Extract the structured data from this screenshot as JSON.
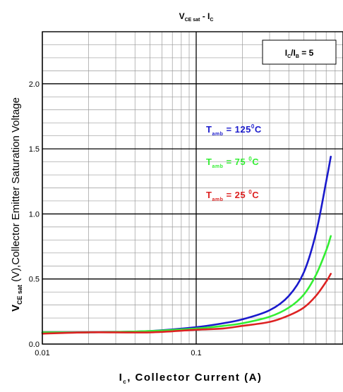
{
  "chart_data": {
    "type": "line",
    "title": {
      "main": "V",
      "main_sub": "CE sat",
      "sep": " - I",
      "sep_sub": "C"
    },
    "xlabel": {
      "main": "I",
      "sub": "c",
      "rest": ", Collector Current (A)"
    },
    "ylabel": {
      "main": "V",
      "sub": "CE sat",
      "rest": " (V),Collector Emitter Saturation Voltage"
    },
    "x_scale": "log",
    "xlim": [
      0.01,
      0.9
    ],
    "ylim": [
      0,
      2.4
    ],
    "x_ticks": [
      {
        "value": 0.01,
        "label": "0.01"
      },
      {
        "value": 0.1,
        "label": "0.1"
      }
    ],
    "y_ticks": [
      {
        "value": 0.0,
        "label": "0.0"
      },
      {
        "value": 0.5,
        "label": "0.5"
      },
      {
        "value": 1.0,
        "label": "1.0"
      },
      {
        "value": 1.5,
        "label": "1.5"
      },
      {
        "value": 2.0,
        "label": "2.0"
      }
    ],
    "grid": true,
    "condition_box": {
      "a": "I",
      "a_sub": "C",
      "b": "/I",
      "b_sub": "B",
      "c": " = 5"
    },
    "series": [
      {
        "name": "T_amb = 125°C",
        "color": "#1a1acc",
        "label": {
          "t": "T",
          "sub": "amb",
          "eq": " = 125",
          "sup": "0",
          "unit": "C"
        },
        "x": [
          0.01,
          0.02,
          0.05,
          0.1,
          0.15,
          0.2,
          0.3,
          0.4,
          0.5,
          0.6,
          0.7,
          0.75
        ],
        "y": [
          0.09,
          0.09,
          0.1,
          0.13,
          0.16,
          0.19,
          0.26,
          0.37,
          0.55,
          0.85,
          1.25,
          1.44
        ]
      },
      {
        "name": "T_amb = 75°C",
        "color": "#33ee33",
        "label": {
          "t": "T",
          "sub": "amb",
          "eq": " = 75 ",
          "sup": "0",
          "unit": "C"
        },
        "x": [
          0.01,
          0.02,
          0.05,
          0.1,
          0.15,
          0.2,
          0.3,
          0.4,
          0.5,
          0.6,
          0.7,
          0.75
        ],
        "y": [
          0.09,
          0.09,
          0.1,
          0.12,
          0.14,
          0.16,
          0.21,
          0.28,
          0.38,
          0.53,
          0.72,
          0.83
        ]
      },
      {
        "name": "T_amb = 25°C",
        "color": "#dd2222",
        "label": {
          "t": "T",
          "sub": "amb",
          "eq": " = 25 ",
          "sup": "0",
          "unit": "C"
        },
        "x": [
          0.01,
          0.02,
          0.05,
          0.1,
          0.15,
          0.2,
          0.3,
          0.4,
          0.5,
          0.6,
          0.7,
          0.75
        ],
        "y": [
          0.08,
          0.09,
          0.09,
          0.11,
          0.12,
          0.14,
          0.17,
          0.22,
          0.28,
          0.37,
          0.48,
          0.54
        ]
      }
    ]
  }
}
